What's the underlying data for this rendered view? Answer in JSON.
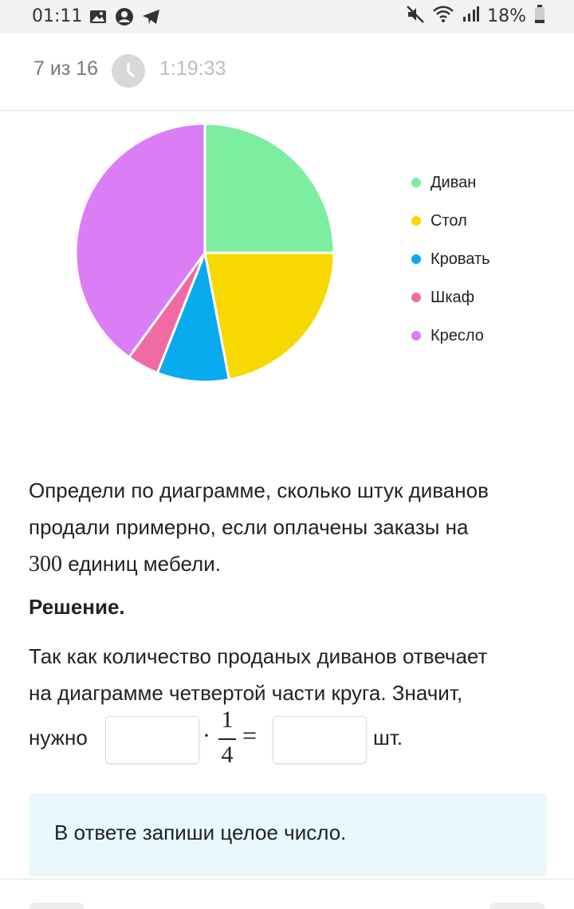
{
  "status_bar": {
    "time": "01:11",
    "battery": "18%",
    "icons": [
      "image-icon",
      "account-icon",
      "telegram-icon",
      "mute-icon",
      "wifi-icon",
      "signal-icon",
      "battery-icon"
    ]
  },
  "header": {
    "counter": "7 из 16",
    "timer_icon": "clock-icon",
    "timer": "1:19:33"
  },
  "chart_data": {
    "type": "pie",
    "title": "",
    "legend_position": "right",
    "slices": [
      {
        "label": "Диван",
        "value": 25,
        "color": "#7ded9f"
      },
      {
        "label": "Стол",
        "value": 22,
        "color": "#f7d800"
      },
      {
        "label": "Кровать",
        "value": 9,
        "color": "#09aaee"
      },
      {
        "label": "Шкаф",
        "value": 4,
        "color": "#f06aa4"
      },
      {
        "label": "Кресло",
        "value": 40,
        "color": "#db7df5"
      }
    ]
  },
  "question": {
    "line1": "Определи по диаграмме, сколько штук диванов",
    "line2": "продали примерно, если оплачены заказы на",
    "number": "300",
    "line3_rest": " единиц мебели."
  },
  "solution": {
    "title": "Решение.",
    "line1": "Так как количество проданых диванов отвечает",
    "line2": "на диаграмме четвертой части круга. Значит,",
    "prefix": "нужно",
    "dot": "·",
    "frac_num": "1",
    "frac_den": "4",
    "equals": "=",
    "unit": "шт.",
    "input1_value": "",
    "input2_value": ""
  },
  "hint": {
    "text": "В ответе запиши целое число."
  }
}
